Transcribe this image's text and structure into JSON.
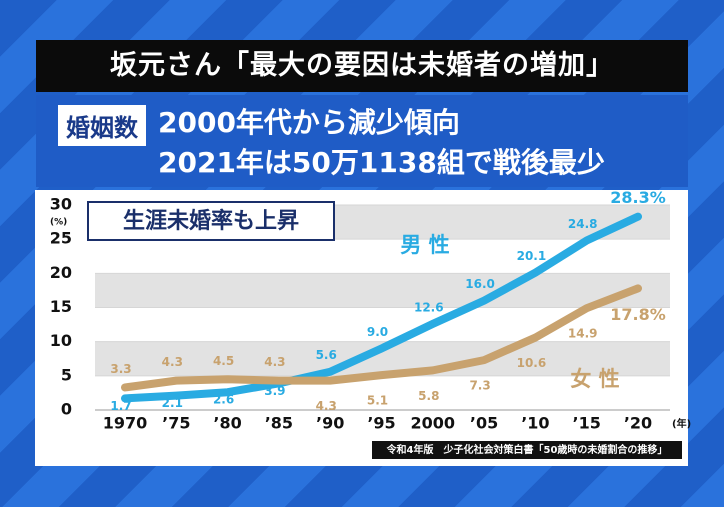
{
  "header": {
    "banner": "坂元さん「最大の要因は未婚者の増加」",
    "tag": "婚姻数",
    "headline": [
      "2000年代から減少傾向",
      "2021年は50万1138組で戦後最少"
    ]
  },
  "chart_data": {
    "type": "line",
    "annotation": "生涯未婚率も上昇",
    "y_unit": "(%)",
    "x_unit": "(年)",
    "source": "令和4年版　少子化社会対策白書「50歳時の未婚割合の推移」",
    "categories": [
      "1970",
      "’75",
      "’80",
      "’85",
      "’90",
      "’95",
      "2000",
      "’05",
      "’10",
      "’15",
      "’20"
    ],
    "series": [
      {
        "name": "男 性",
        "color": "#29abe2",
        "values": [
          1.7,
          2.1,
          2.6,
          3.9,
          5.6,
          9.0,
          12.6,
          16.0,
          20.1,
          24.8,
          28.3
        ],
        "value_labels": [
          "1.7",
          "2.1",
          "2.6",
          "3.9",
          "5.6",
          "9.0",
          "12.6",
          "16.0",
          "20.1",
          "24.8",
          "28.3%"
        ]
      },
      {
        "name": "女 性",
        "color": "#c8a26e",
        "values": [
          3.3,
          4.3,
          4.5,
          4.3,
          4.3,
          5.1,
          5.8,
          7.3,
          10.6,
          14.9,
          17.8
        ],
        "value_labels": [
          "3.3",
          "4.3",
          "4.5",
          "4.3",
          "4.3",
          "5.1",
          "5.8",
          "7.3",
          "10.6",
          "14.9",
          "17.8%"
        ]
      }
    ],
    "ylim": [
      0,
      30
    ],
    "yticks": [
      0,
      5,
      10,
      15,
      20,
      25,
      30
    ],
    "grid": true
  }
}
